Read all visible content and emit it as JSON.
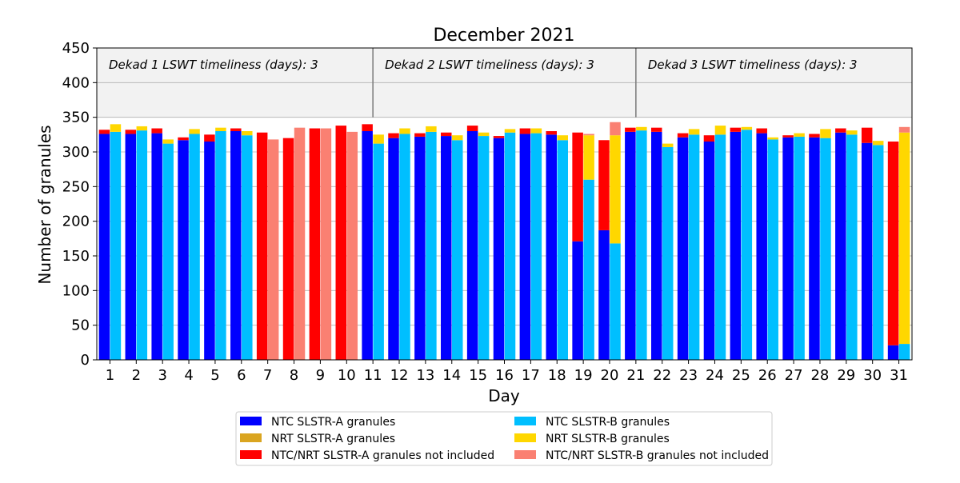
{
  "chart_data": {
    "type": "bar",
    "title": "December 2021",
    "xlabel": "Day",
    "ylabel": "Number of granules",
    "ylim": [
      0,
      450
    ],
    "yticks": [
      0,
      50,
      100,
      150,
      200,
      250,
      300,
      350,
      400,
      450
    ],
    "grid": "horizontal",
    "shaded_band": [
      350,
      450
    ],
    "categories": [
      "1",
      "2",
      "3",
      "4",
      "5",
      "6",
      "7",
      "8",
      "9",
      "10",
      "11",
      "12",
      "13",
      "14",
      "15",
      "16",
      "17",
      "18",
      "19",
      "20",
      "21",
      "22",
      "23",
      "24",
      "25",
      "26",
      "27",
      "28",
      "29",
      "30",
      "31"
    ],
    "dekad_labels": [
      "Dekad 1 LSWT timeliness (days): 3",
      "Dekad 2 LSWT timeliness (days): 3",
      "Dekad 3 LSWT timeliness (days): 3"
    ],
    "dekad_boundaries": [
      10.5,
      20.5
    ],
    "series": [
      {
        "name": "NTC SLSTR-A granules",
        "color": "#0000ff",
        "group": "A",
        "values": [
          326,
          326,
          327,
          317,
          315,
          330,
          0,
          0,
          0,
          0,
          330,
          320,
          322,
          323,
          330,
          320,
          326,
          325,
          171,
          187,
          329,
          329,
          321,
          315,
          329,
          327,
          321,
          321,
          328,
          313,
          21
        ]
      },
      {
        "name": "NRT SLSTR-A granules",
        "color": "#daa520",
        "group": "A",
        "values": [
          0,
          0,
          0,
          0,
          0,
          0,
          0,
          0,
          0,
          0,
          0,
          0,
          0,
          0,
          0,
          0,
          0,
          0,
          0,
          0,
          0,
          0,
          0,
          0,
          0,
          0,
          0,
          0,
          0,
          0,
          0
        ]
      },
      {
        "name": "NTC/NRT SLSTR-A granules not included",
        "color": "#ff0000",
        "group": "A",
        "values": [
          6,
          6,
          7,
          4,
          10,
          4,
          328,
          320,
          334,
          338,
          10,
          7,
          5,
          5,
          8,
          3,
          8,
          5,
          157,
          130,
          6,
          6,
          6,
          9,
          6,
          7,
          3,
          5,
          6,
          22,
          294
        ]
      },
      {
        "name": "NTC SLSTR-B granules",
        "color": "#00bfff",
        "group": "B",
        "values": [
          329,
          331,
          312,
          326,
          330,
          324,
          0,
          0,
          0,
          0,
          312,
          326,
          329,
          317,
          323,
          328,
          327,
          317,
          260,
          168,
          331,
          307,
          325,
          325,
          332,
          318,
          322,
          320,
          325,
          310,
          23
        ]
      },
      {
        "name": "NRT SLSTR-B granules",
        "color": "#ffd700",
        "group": "B",
        "values": [
          11,
          6,
          6,
          7,
          5,
          6,
          0,
          0,
          0,
          0,
          13,
          8,
          8,
          7,
          5,
          5,
          7,
          7,
          64,
          156,
          5,
          5,
          8,
          13,
          4,
          3,
          5,
          13,
          6,
          6,
          305
        ]
      },
      {
        "name": "NTC/NRT SLSTR-B granules not included",
        "color": "#fa8072",
        "group": "B",
        "values": [
          0,
          0,
          0,
          0,
          0,
          0,
          318,
          335,
          334,
          329,
          0,
          0,
          0,
          0,
          0,
          0,
          0,
          0,
          2,
          19,
          0,
          0,
          0,
          0,
          0,
          0,
          0,
          0,
          0,
          0,
          8
        ]
      }
    ],
    "legend": {
      "placement": "bottom-center",
      "columns": 2,
      "entries": [
        "NTC SLSTR-A granules",
        "NRT SLSTR-A granules",
        "NTC/NRT SLSTR-A granules not included",
        "NTC SLSTR-B granules",
        "NRT SLSTR-B granules",
        "NTC/NRT SLSTR-B granules not included"
      ]
    }
  }
}
